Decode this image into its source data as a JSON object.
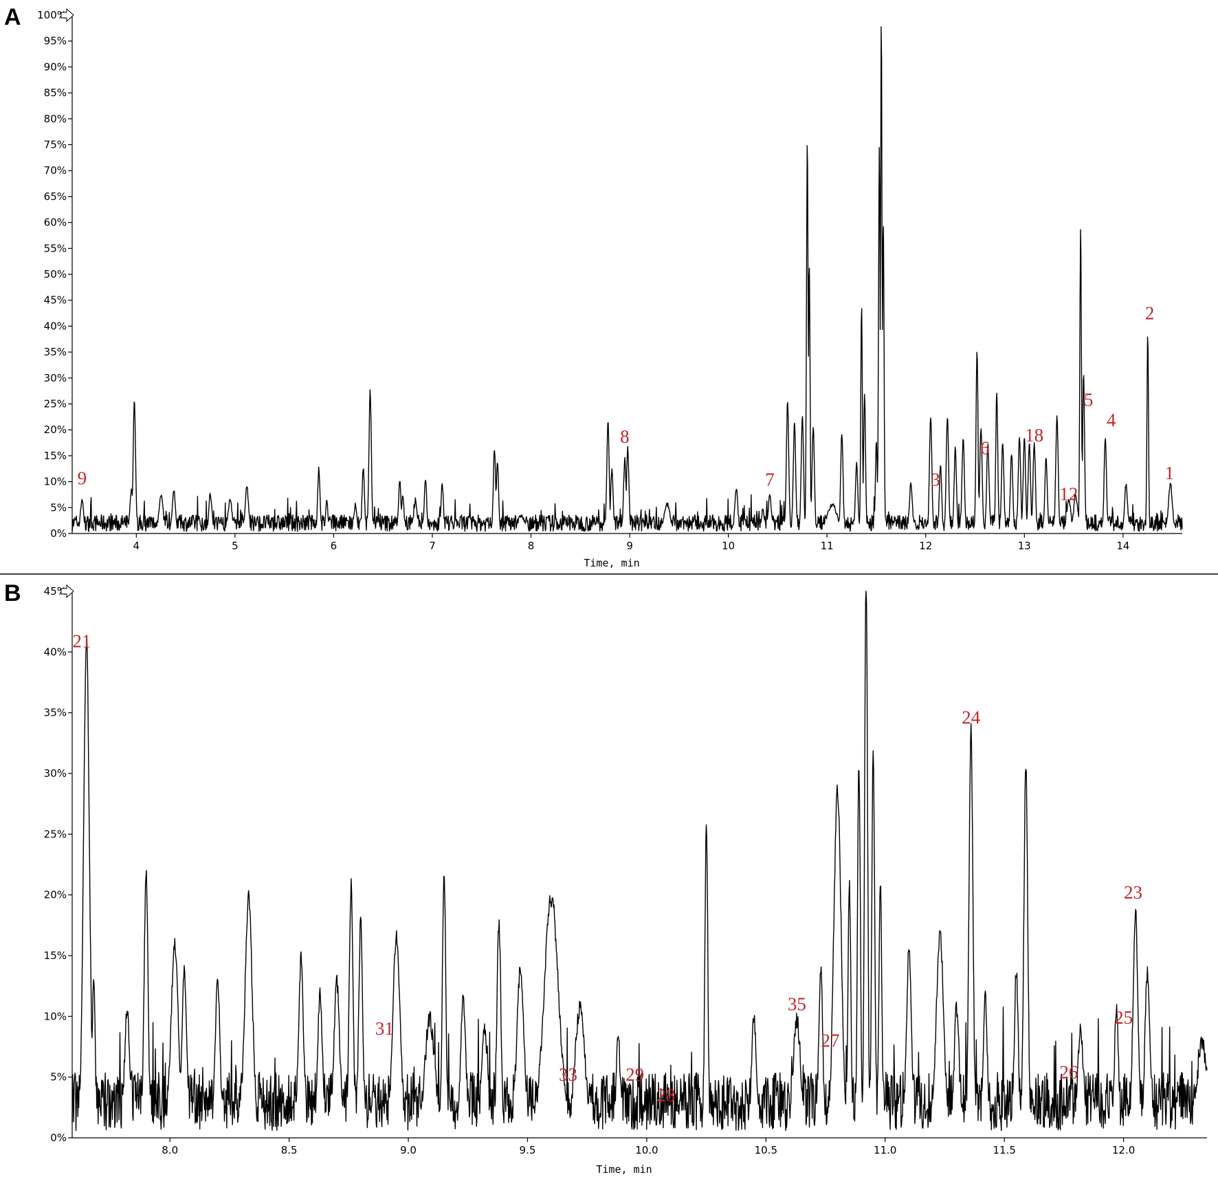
{
  "chart_data": [
    {
      "type": "line",
      "panel": "A",
      "xlabel": "Time, min",
      "ylabel": "",
      "xlim": [
        3.35,
        14.6
      ],
      "ylim": [
        0,
        100
      ],
      "x_ticks": [
        "4",
        "5",
        "6",
        "7",
        "8",
        "9",
        "10",
        "11",
        "12",
        "13",
        "14"
      ],
      "y_ticks": [
        "0%",
        "5%",
        "10%",
        "15%",
        "20%",
        "25%",
        "30%",
        "35%",
        "40%",
        "45%",
        "50%",
        "55%",
        "60%",
        "65%",
        "70%",
        "75%",
        "80%",
        "85%",
        "90%",
        "95%",
        "100%"
      ],
      "baseline": 2,
      "peaks": [
        {
          "x": 3.45,
          "y": 6,
          "w": 0.015
        },
        {
          "x": 3.95,
          "y": 8,
          "w": 0.015
        },
        {
          "x": 3.98,
          "y": 25,
          "w": 0.012
        },
        {
          "x": 4.25,
          "y": 7,
          "w": 0.02
        },
        {
          "x": 4.38,
          "y": 8,
          "w": 0.015
        },
        {
          "x": 4.75,
          "y": 7,
          "w": 0.015
        },
        {
          "x": 4.95,
          "y": 6,
          "w": 0.02
        },
        {
          "x": 5.12,
          "y": 9,
          "w": 0.015
        },
        {
          "x": 5.85,
          "y": 12,
          "w": 0.012
        },
        {
          "x": 5.93,
          "y": 6,
          "w": 0.012
        },
        {
          "x": 6.22,
          "y": 5,
          "w": 0.015
        },
        {
          "x": 6.3,
          "y": 12,
          "w": 0.012
        },
        {
          "x": 6.37,
          "y": 27,
          "w": 0.012
        },
        {
          "x": 6.67,
          "y": 10,
          "w": 0.012
        },
        {
          "x": 6.7,
          "y": 7,
          "w": 0.012
        },
        {
          "x": 6.83,
          "y": 6,
          "w": 0.015
        },
        {
          "x": 6.93,
          "y": 10,
          "w": 0.012
        },
        {
          "x": 7.1,
          "y": 9,
          "w": 0.012
        },
        {
          "x": 7.63,
          "y": 16,
          "w": 0.012
        },
        {
          "x": 7.66,
          "y": 13,
          "w": 0.012
        },
        {
          "x": 7.9,
          "y": 3,
          "w": 0.03
        },
        {
          "x": 8.78,
          "y": 21,
          "w": 0.012
        },
        {
          "x": 8.82,
          "y": 12,
          "w": 0.012
        },
        {
          "x": 8.95,
          "y": 14,
          "w": 0.012
        },
        {
          "x": 8.98,
          "y": 16,
          "w": 0.012
        },
        {
          "x": 9.38,
          "y": 5,
          "w": 0.03
        },
        {
          "x": 10.08,
          "y": 8,
          "w": 0.015
        },
        {
          "x": 10.35,
          "y": 4,
          "w": 0.015
        },
        {
          "x": 10.42,
          "y": 7,
          "w": 0.015
        },
        {
          "x": 10.6,
          "y": 25,
          "w": 0.012
        },
        {
          "x": 10.67,
          "y": 21,
          "w": 0.012
        },
        {
          "x": 10.75,
          "y": 22,
          "w": 0.012
        },
        {
          "x": 10.8,
          "y": 76,
          "w": 0.008
        },
        {
          "x": 10.82,
          "y": 52,
          "w": 0.008
        },
        {
          "x": 10.86,
          "y": 20,
          "w": 0.012
        },
        {
          "x": 11.05,
          "y": 5,
          "w": 0.05
        },
        {
          "x": 11.15,
          "y": 19,
          "w": 0.012
        },
        {
          "x": 11.3,
          "y": 13,
          "w": 0.012
        },
        {
          "x": 11.35,
          "y": 44,
          "w": 0.008
        },
        {
          "x": 11.38,
          "y": 26,
          "w": 0.01
        },
        {
          "x": 11.5,
          "y": 17,
          "w": 0.01
        },
        {
          "x": 11.53,
          "y": 74,
          "w": 0.008
        },
        {
          "x": 11.55,
          "y": 100,
          "w": 0.007
        },
        {
          "x": 11.57,
          "y": 60,
          "w": 0.008
        },
        {
          "x": 11.85,
          "y": 9,
          "w": 0.015
        },
        {
          "x": 12.05,
          "y": 22,
          "w": 0.012
        },
        {
          "x": 12.15,
          "y": 13,
          "w": 0.012
        },
        {
          "x": 12.22,
          "y": 22,
          "w": 0.012
        },
        {
          "x": 12.3,
          "y": 16,
          "w": 0.012
        },
        {
          "x": 12.38,
          "y": 18,
          "w": 0.012
        },
        {
          "x": 12.52,
          "y": 35,
          "w": 0.01
        },
        {
          "x": 12.56,
          "y": 20,
          "w": 0.012
        },
        {
          "x": 12.63,
          "y": 17,
          "w": 0.012
        },
        {
          "x": 12.72,
          "y": 27,
          "w": 0.01
        },
        {
          "x": 12.78,
          "y": 17,
          "w": 0.012
        },
        {
          "x": 12.87,
          "y": 15,
          "w": 0.012
        },
        {
          "x": 12.95,
          "y": 18,
          "w": 0.012
        },
        {
          "x": 13.0,
          "y": 18,
          "w": 0.012
        },
        {
          "x": 13.05,
          "y": 17,
          "w": 0.012
        },
        {
          "x": 13.1,
          "y": 17,
          "w": 0.012
        },
        {
          "x": 13.22,
          "y": 14,
          "w": 0.012
        },
        {
          "x": 13.33,
          "y": 22,
          "w": 0.012
        },
        {
          "x": 13.45,
          "y": 6,
          "w": 0.02
        },
        {
          "x": 13.52,
          "y": 7,
          "w": 0.02
        },
        {
          "x": 13.57,
          "y": 59,
          "w": 0.008
        },
        {
          "x": 13.6,
          "y": 30,
          "w": 0.01
        },
        {
          "x": 13.82,
          "y": 18,
          "w": 0.012
        },
        {
          "x": 14.03,
          "y": 9,
          "w": 0.015
        },
        {
          "x": 14.25,
          "y": 38,
          "w": 0.008
        },
        {
          "x": 14.48,
          "y": 9,
          "w": 0.02
        }
      ],
      "annotations": [
        {
          "text": "9",
          "x": 3.45,
          "y": 9.5
        },
        {
          "text": "8",
          "x": 8.95,
          "y": 17.5
        },
        {
          "text": "7",
          "x": 10.42,
          "y": 9.2
        },
        {
          "text": "3",
          "x": 12.1,
          "y": 9.2
        },
        {
          "text": "6",
          "x": 12.6,
          "y": 15.3
        },
        {
          "text": "18",
          "x": 13.1,
          "y": 17.8
        },
        {
          "text": "12",
          "x": 13.45,
          "y": 6.4
        },
        {
          "text": "5",
          "x": 13.65,
          "y": 24.6
        },
        {
          "text": "4",
          "x": 13.88,
          "y": 20.7
        },
        {
          "text": "2",
          "x": 14.27,
          "y": 41.3
        },
        {
          "text": "1",
          "x": 14.47,
          "y": 10.5
        }
      ]
    },
    {
      "type": "line",
      "panel": "B",
      "xlabel": "Time, min",
      "ylabel": "",
      "xlim": [
        7.59,
        12.35
      ],
      "ylim": [
        0,
        45
      ],
      "x_ticks": [
        "8.0",
        "8.5",
        "9.0",
        "9.5",
        "10.0",
        "10.5",
        "11.0",
        "11.5",
        "12.0"
      ],
      "y_ticks": [
        "0%",
        "5%",
        "10%",
        "15%",
        "20%",
        "25%",
        "30%",
        "35%",
        "40%",
        "45%"
      ],
      "baseline": 3,
      "peaks": [
        {
          "x": 7.65,
          "y": 40,
          "w": 0.012
        },
        {
          "x": 7.68,
          "y": 13,
          "w": 0.006
        },
        {
          "x": 7.82,
          "y": 10,
          "w": 0.01
        },
        {
          "x": 7.9,
          "y": 21,
          "w": 0.008
        },
        {
          "x": 8.02,
          "y": 15,
          "w": 0.015
        },
        {
          "x": 8.06,
          "y": 13,
          "w": 0.01
        },
        {
          "x": 8.2,
          "y": 12,
          "w": 0.01
        },
        {
          "x": 8.33,
          "y": 19,
          "w": 0.015
        },
        {
          "x": 8.55,
          "y": 14,
          "w": 0.01
        },
        {
          "x": 8.63,
          "y": 11,
          "w": 0.01
        },
        {
          "x": 8.7,
          "y": 12,
          "w": 0.012
        },
        {
          "x": 8.76,
          "y": 20,
          "w": 0.008
        },
        {
          "x": 8.8,
          "y": 17,
          "w": 0.008
        },
        {
          "x": 8.95,
          "y": 16,
          "w": 0.015
        },
        {
          "x": 9.09,
          "y": 9,
          "w": 0.02
        },
        {
          "x": 9.15,
          "y": 21,
          "w": 0.007
        },
        {
          "x": 9.23,
          "y": 11,
          "w": 0.01
        },
        {
          "x": 9.32,
          "y": 8,
          "w": 0.012
        },
        {
          "x": 9.38,
          "y": 17,
          "w": 0.008
        },
        {
          "x": 9.47,
          "y": 13,
          "w": 0.015
        },
        {
          "x": 9.6,
          "y": 19,
          "w": 0.03
        },
        {
          "x": 9.72,
          "y": 10,
          "w": 0.02
        },
        {
          "x": 9.88,
          "y": 8,
          "w": 0.008
        },
        {
          "x": 10.25,
          "y": 25,
          "w": 0.006
        },
        {
          "x": 10.45,
          "y": 9,
          "w": 0.01
        },
        {
          "x": 10.63,
          "y": 9,
          "w": 0.015
        },
        {
          "x": 10.73,
          "y": 13,
          "w": 0.008
        },
        {
          "x": 10.8,
          "y": 28,
          "w": 0.015
        },
        {
          "x": 10.85,
          "y": 20,
          "w": 0.006
        },
        {
          "x": 10.89,
          "y": 30,
          "w": 0.006
        },
        {
          "x": 10.92,
          "y": 46,
          "w": 0.006
        },
        {
          "x": 10.95,
          "y": 31,
          "w": 0.006
        },
        {
          "x": 10.98,
          "y": 20,
          "w": 0.006
        },
        {
          "x": 11.1,
          "y": 15,
          "w": 0.01
        },
        {
          "x": 11.23,
          "y": 16,
          "w": 0.015
        },
        {
          "x": 11.3,
          "y": 10,
          "w": 0.01
        },
        {
          "x": 11.36,
          "y": 33,
          "w": 0.008
        },
        {
          "x": 11.42,
          "y": 11,
          "w": 0.008
        },
        {
          "x": 11.55,
          "y": 13,
          "w": 0.008
        },
        {
          "x": 11.59,
          "y": 30,
          "w": 0.008
        },
        {
          "x": 11.82,
          "y": 8,
          "w": 0.012
        },
        {
          "x": 11.97,
          "y": 10,
          "w": 0.008
        },
        {
          "x": 12.05,
          "y": 18,
          "w": 0.01
        },
        {
          "x": 12.1,
          "y": 13,
          "w": 0.01
        },
        {
          "x": 12.33,
          "y": 7,
          "w": 0.02
        }
      ],
      "annotations": [
        {
          "text": "21",
          "x": 7.63,
          "y": 40.4
        },
        {
          "text": "31",
          "x": 8.9,
          "y": 8.5
        },
        {
          "text": "33",
          "x": 9.67,
          "y": 4.7
        },
        {
          "text": "29",
          "x": 9.95,
          "y": 4.7
        },
        {
          "text": "28",
          "x": 10.08,
          "y": 3.0
        },
        {
          "text": "35",
          "x": 10.63,
          "y": 10.5
        },
        {
          "text": "27",
          "x": 10.77,
          "y": 7.5
        },
        {
          "text": "24",
          "x": 11.36,
          "y": 34.1
        },
        {
          "text": "26",
          "x": 11.77,
          "y": 4.9
        },
        {
          "text": "25",
          "x": 12.0,
          "y": 9.4
        },
        {
          "text": "23",
          "x": 12.04,
          "y": 19.7
        }
      ]
    }
  ],
  "panels": [
    {
      "letter": "A",
      "xlabel": "Time, min"
    },
    {
      "letter": "B",
      "xlabel": "Time, min"
    }
  ]
}
